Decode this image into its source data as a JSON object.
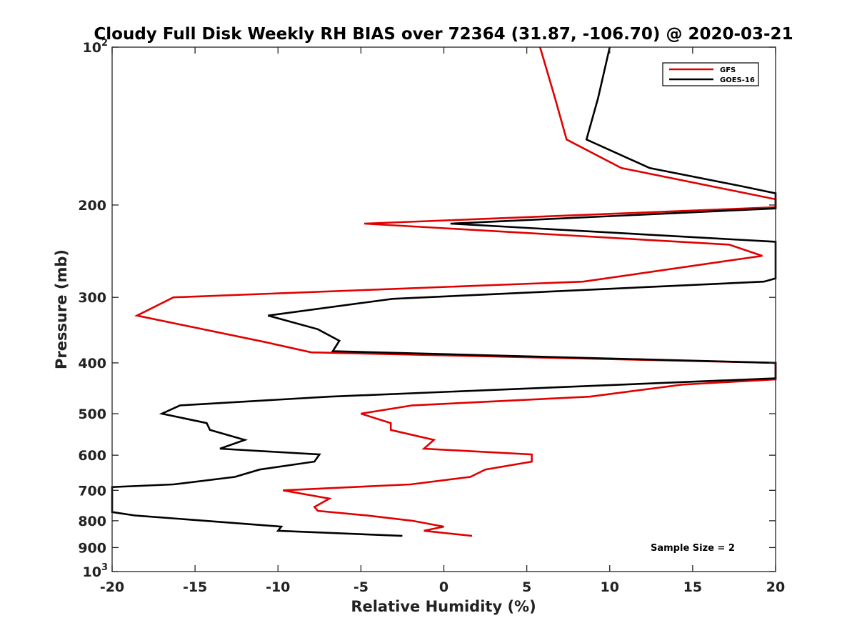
{
  "chart_data": {
    "type": "line",
    "title": "Cloudy Full Disk Weekly RH BIAS over 72364 (31.87, -106.70) @ 2020-03-21",
    "xlabel": "Relative Humidity (%)",
    "ylabel": "Pressure (mb)",
    "xlim": [
      -20,
      20
    ],
    "ylim": [
      100,
      1000
    ],
    "y_scale": "log",
    "y_reversed": true,
    "x_ticks": [
      "-20",
      "-15",
      "-10",
      "-5",
      "0",
      "5",
      "10",
      "15",
      "20"
    ],
    "x_tick_values": [
      -20,
      -15,
      -10,
      -5,
      0,
      5,
      10,
      15,
      20
    ],
    "y_ticks": [
      {
        "value": 100,
        "base": "10",
        "exp": "2"
      },
      {
        "value": 200,
        "label": "200"
      },
      {
        "value": 300,
        "label": "300"
      },
      {
        "value": 400,
        "label": "400"
      },
      {
        "value": 500,
        "label": "500"
      },
      {
        "value": 600,
        "label": "600"
      },
      {
        "value": 700,
        "label": "700"
      },
      {
        "value": 800,
        "label": "800"
      },
      {
        "value": 900,
        "label": "900"
      },
      {
        "value": 1000,
        "base": "10",
        "exp": "3"
      }
    ],
    "grid": false,
    "legend_position": "top-right",
    "annotation": "Sample Size = 2",
    "series": [
      {
        "name": "GFS",
        "color": "#e00000",
        "points": [
          {
            "x": 5.8,
            "p": 100
          },
          {
            "x": 6.7,
            "p": 125
          },
          {
            "x": 7.4,
            "p": 150
          },
          {
            "x": 10.7,
            "p": 170
          },
          {
            "x": 20.0,
            "p": 195
          },
          {
            "x": 20.0,
            "p": 202
          },
          {
            "x": -4.8,
            "p": 217
          },
          {
            "x": 17.2,
            "p": 238
          },
          {
            "x": 19.2,
            "p": 250
          },
          {
            "x": 8.4,
            "p": 280
          },
          {
            "x": -16.3,
            "p": 300
          },
          {
            "x": -18.5,
            "p": 325
          },
          {
            "x": -10.8,
            "p": 365
          },
          {
            "x": -8.0,
            "p": 382
          },
          {
            "x": 20.0,
            "p": 400
          },
          {
            "x": 20.0,
            "p": 430
          },
          {
            "x": 14.4,
            "p": 440
          },
          {
            "x": 8.8,
            "p": 464
          },
          {
            "x": -1.9,
            "p": 482
          },
          {
            "x": -5.0,
            "p": 500
          },
          {
            "x": -3.2,
            "p": 521
          },
          {
            "x": -3.2,
            "p": 537
          },
          {
            "x": -0.6,
            "p": 561
          },
          {
            "x": -1.2,
            "p": 583
          },
          {
            "x": 5.3,
            "p": 598
          },
          {
            "x": 5.3,
            "p": 617
          },
          {
            "x": 2.5,
            "p": 639
          },
          {
            "x": 1.6,
            "p": 660
          },
          {
            "x": -2.0,
            "p": 682
          },
          {
            "x": -9.7,
            "p": 700
          },
          {
            "x": -6.9,
            "p": 726
          },
          {
            "x": -7.8,
            "p": 753
          },
          {
            "x": -7.6,
            "p": 766
          },
          {
            "x": -4.6,
            "p": 782
          },
          {
            "x": -1.9,
            "p": 800
          },
          {
            "x": 0.0,
            "p": 821
          },
          {
            "x": -1.2,
            "p": 836
          },
          {
            "x": 1.7,
            "p": 855
          }
        ]
      },
      {
        "name": "GOES-16",
        "color": "#000000",
        "points": [
          {
            "x": 10.0,
            "p": 100
          },
          {
            "x": 9.3,
            "p": 125
          },
          {
            "x": 8.6,
            "p": 150
          },
          {
            "x": 12.4,
            "p": 170
          },
          {
            "x": 17.9,
            "p": 184
          },
          {
            "x": 20.0,
            "p": 190
          },
          {
            "x": 20.0,
            "p": 203
          },
          {
            "x": 0.4,
            "p": 217
          },
          {
            "x": 20.0,
            "p": 235
          },
          {
            "x": 20.0,
            "p": 276
          },
          {
            "x": 19.3,
            "p": 280
          },
          {
            "x": -3.1,
            "p": 302
          },
          {
            "x": -10.6,
            "p": 325
          },
          {
            "x": -7.6,
            "p": 345
          },
          {
            "x": -6.3,
            "p": 363
          },
          {
            "x": -6.7,
            "p": 380
          },
          {
            "x": 20.0,
            "p": 400
          },
          {
            "x": 20.0,
            "p": 428
          },
          {
            "x": -6.9,
            "p": 464
          },
          {
            "x": -15.9,
            "p": 482
          },
          {
            "x": -17.0,
            "p": 500
          },
          {
            "x": -14.3,
            "p": 521
          },
          {
            "x": -14.1,
            "p": 537
          },
          {
            "x": -12.0,
            "p": 561
          },
          {
            "x": -13.5,
            "p": 583
          },
          {
            "x": -7.5,
            "p": 598
          },
          {
            "x": -7.8,
            "p": 617
          },
          {
            "x": -11.1,
            "p": 639
          },
          {
            "x": -12.6,
            "p": 660
          },
          {
            "x": -16.3,
            "p": 682
          },
          {
            "x": -20.0,
            "p": 690
          },
          {
            "x": -20.0,
            "p": 770
          },
          {
            "x": -18.6,
            "p": 782
          },
          {
            "x": -14.4,
            "p": 800
          },
          {
            "x": -9.8,
            "p": 821
          },
          {
            "x": -10.0,
            "p": 836
          },
          {
            "x": -2.5,
            "p": 855
          }
        ]
      }
    ]
  }
}
